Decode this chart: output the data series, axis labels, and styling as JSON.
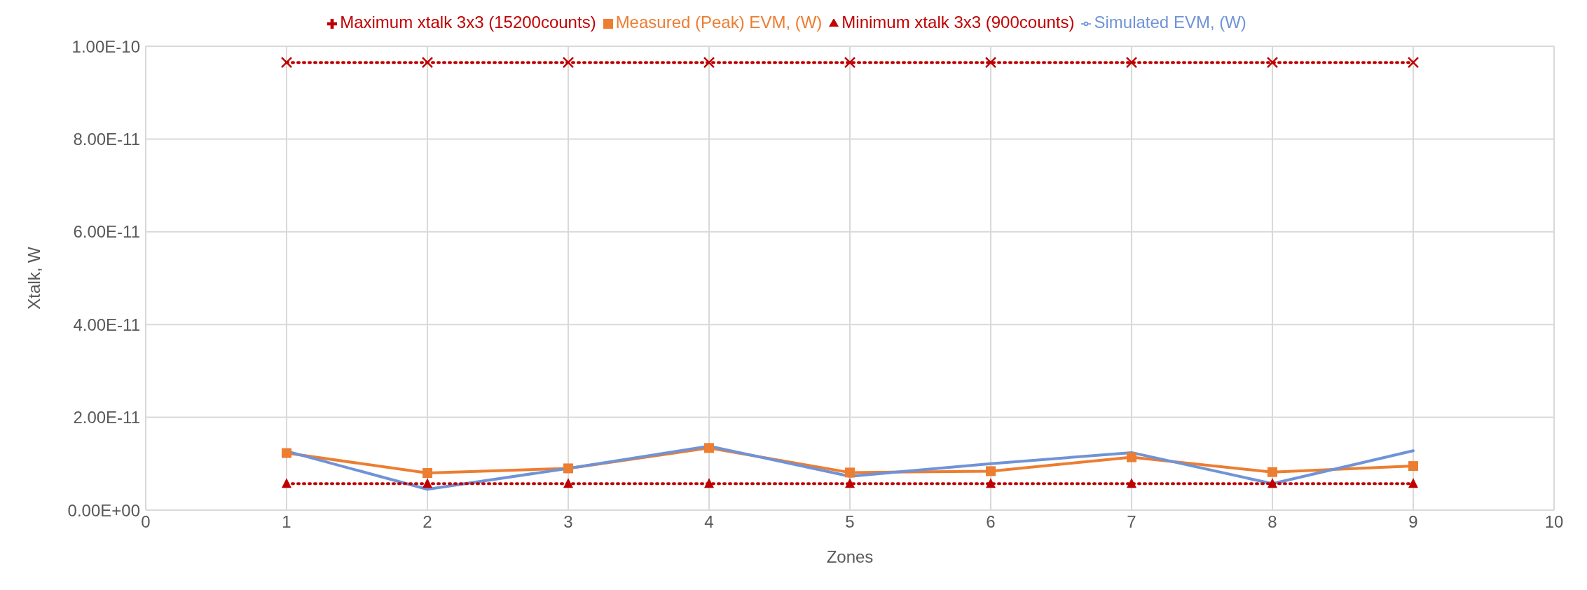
{
  "chart_data": {
    "type": "line",
    "xlabel": "Zones",
    "ylabel": "Xtalk, W",
    "x": [
      1,
      2,
      3,
      4,
      5,
      6,
      7,
      8,
      9
    ],
    "series": [
      {
        "name": "Measured (Peak) EVM, (W)",
        "color": "#ed7d31",
        "marker": "square",
        "line_style": "solid",
        "values": [
          1.23e-11,
          8e-12,
          9e-12,
          1.34e-11,
          8.1e-12,
          8.4e-12,
          1.14e-11,
          8.2e-12,
          9.5e-12
        ]
      },
      {
        "name": "Simulated EVM, (W)",
        "color": "#6f93d6",
        "marker": "none",
        "line_style": "solid",
        "values": [
          1.27e-11,
          4.5e-12,
          9e-12,
          1.38e-11,
          7.3e-12,
          1e-11,
          1.24e-11,
          5.7e-12,
          1.28e-11
        ]
      },
      {
        "name": "Minimum xtalk 3x3 (900counts)",
        "color": "#c00000",
        "marker": "triangle",
        "line_style": "dotted",
        "values": [
          5.7e-12,
          5.7e-12,
          5.7e-12,
          5.7e-12,
          5.7e-12,
          5.7e-12,
          5.7e-12,
          5.7e-12,
          5.7e-12
        ]
      },
      {
        "name": "Maximum xtalk 3x3 (15200counts)",
        "color": "#c00000",
        "marker": "cross",
        "line_style": "dotted",
        "values": [
          9.65e-11,
          9.65e-11,
          9.65e-11,
          9.65e-11,
          9.65e-11,
          9.65e-11,
          9.65e-11,
          9.65e-11,
          9.65e-11
        ]
      }
    ],
    "xlim": [
      0,
      10
    ],
    "xticks": [
      0,
      1,
      2,
      3,
      4,
      5,
      6,
      7,
      8,
      9,
      10
    ],
    "ylim": [
      0,
      1e-10
    ],
    "yticks": [
      {
        "value": 0,
        "label": "0.00E+00"
      },
      {
        "value": 2e-11,
        "label": "2.00E-11"
      },
      {
        "value": 4e-11,
        "label": "4.00E-11"
      },
      {
        "value": 6e-11,
        "label": "6.00E-11"
      },
      {
        "value": 8e-11,
        "label": "8.00E-11"
      },
      {
        "value": 1e-10,
        "label": "1.00E-10"
      }
    ],
    "grid": true,
    "legend": "top"
  }
}
